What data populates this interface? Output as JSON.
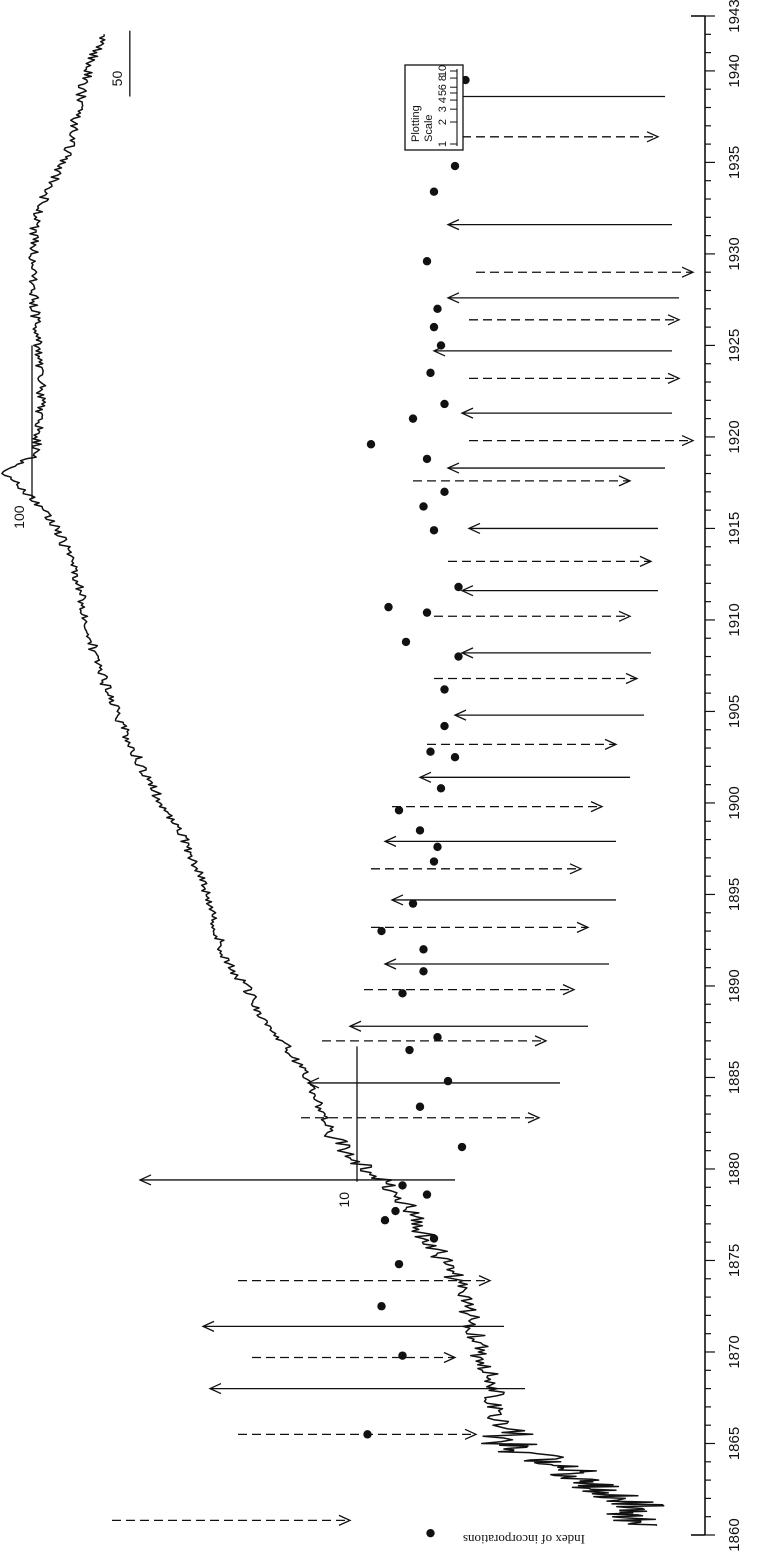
{
  "chart_data": {
    "type": "line",
    "ylabel": "Index of incorporations",
    "x_range": [
      1860,
      1943
    ],
    "x_ticks": [
      "1860",
      "1865",
      "1870",
      "1875",
      "1880",
      "1885",
      "1890",
      "1895",
      "1900",
      "1905",
      "1910",
      "1915",
      "1920",
      "1925",
      "1930",
      "1935",
      "1940",
      "1943"
    ],
    "y_scale": "log",
    "reference_levels": [
      {
        "label": "10",
        "value": 10
      },
      {
        "label": "100",
        "value": 100
      },
      {
        "label": "50",
        "value": 50
      }
    ],
    "series": [
      {
        "x": [
          1860.5,
          1861,
          1861.5,
          1862,
          1862.5,
          1863,
          1863.5,
          1864,
          1864.5,
          1865,
          1866,
          1867,
          1868,
          1869,
          1870,
          1871,
          1872,
          1873,
          1874,
          1875,
          1876,
          1877,
          1878,
          1879,
          1880,
          1881,
          1882,
          1883,
          1884,
          1885,
          1886,
          1887,
          1888,
          1889,
          1890,
          1891,
          1892,
          1893,
          1894,
          1895,
          1896,
          1897,
          1898,
          1899,
          1900,
          1901,
          1902,
          1903,
          1904,
          1905,
          1906,
          1907,
          1908,
          1909,
          1910,
          1911,
          1912,
          1913,
          1914,
          1915,
          1916,
          1917,
          1918,
          1919,
          1920,
          1921,
          1922,
          1923,
          1924,
          1925,
          1926,
          1927,
          1928,
          1929,
          1930,
          1931,
          1932,
          1933,
          1934,
          1935,
          1936,
          1937,
          1938,
          1939,
          1940,
          1941,
          1942
        ],
        "values": [
          1.2,
          1.5,
          1.3,
          1.6,
          1.8,
          2.0,
          2.2,
          2.6,
          3.0,
          3.4,
          3.6,
          3.8,
          3.7,
          3.9,
          4.2,
          4.3,
          4.5,
          4.8,
          5.0,
          5.4,
          6.0,
          6.5,
          7.0,
          7.8,
          9.2,
          11.0,
          12.0,
          12.8,
          13.5,
          14.2,
          15.5,
          17.0,
          19.0,
          20.5,
          22.0,
          24.5,
          26.0,
          27.0,
          28.0,
          29.0,
          30.0,
          32.0,
          34.0,
          37.0,
          40.0,
          43.0,
          46.0,
          49.0,
          52.0,
          55.0,
          58.0,
          61.0,
          64.0,
          66.0,
          68.0,
          70.0,
          72.0,
          75.0,
          79.0,
          84.0,
          92.0,
          104.0,
          122.0,
          98.0,
          96.0,
          95.0,
          94.0,
          93.0,
          95.0,
          96.0,
          97.0,
          98.0,
          99.0,
          98.0,
          99.0,
          99.0,
          97.0,
          92.0,
          86.0,
          80.0,
          76.0,
          74.0,
          72.0,
          70.0,
          67.0,
          64.0,
          60.0
        ]
      }
    ],
    "dot_markers": {
      "x": [
        1860.1,
        1865.5,
        1869.8,
        1872.5,
        1874.8,
        1876.2,
        1877.2,
        1877.7,
        1878.6,
        1879.1,
        1881.2,
        1883.4,
        1884.8,
        1886.5,
        1887.2,
        1889.6,
        1890.8,
        1892.0,
        1893.0,
        1894.5,
        1896.8,
        1897.6,
        1898.5,
        1899.6,
        1900.8,
        1902.5,
        1902.8,
        1904.2,
        1906.2,
        1908.0,
        1908.8,
        1910.4,
        1910.7,
        1911.8,
        1914.9,
        1916.2,
        1917.0,
        1918.8,
        1919.6,
        1921.0,
        1921.8,
        1923.5,
        1925.0,
        1926.0,
        1927.0,
        1929.6,
        1933.4,
        1934.8,
        1938.2,
        1939.5
      ],
      "y_above_curve": [
        0.13,
        0.31,
        0.21,
        0.27,
        0.22,
        0.12,
        0.26,
        0.23,
        0.14,
        0.21,
        0.04,
        0.16,
        0.08,
        0.19,
        0.11,
        0.21,
        0.15,
        0.15,
        0.27,
        0.18,
        0.12,
        0.11,
        0.16,
        0.22,
        0.1,
        0.06,
        0.13,
        0.09,
        0.09,
        0.05,
        0.2,
        0.14,
        0.25,
        0.05,
        0.12,
        0.15,
        0.09,
        0.14,
        0.3,
        0.18,
        0.09,
        0.13,
        0.1,
        0.12,
        0.11,
        0.14,
        0.12,
        0.06,
        0.05,
        0.03
      ]
    },
    "arrows_solid": [
      {
        "x": 1868.0,
        "from": 0.25,
        "to": 0.7
      },
      {
        "x": 1871.4,
        "from": 0.28,
        "to": 0.71
      },
      {
        "x": 1879.4,
        "from": 0.35,
        "to": 0.8
      },
      {
        "x": 1884.7,
        "from": 0.2,
        "to": 0.56
      },
      {
        "x": 1887.8,
        "from": 0.16,
        "to": 0.5
      },
      {
        "x": 1891.2,
        "from": 0.13,
        "to": 0.45
      },
      {
        "x": 1894.7,
        "from": 0.12,
        "to": 0.44
      },
      {
        "x": 1897.9,
        "from": 0.12,
        "to": 0.45
      },
      {
        "x": 1901.4,
        "from": 0.1,
        "to": 0.4
      },
      {
        "x": 1904.8,
        "from": 0.08,
        "to": 0.35
      },
      {
        "x": 1908.2,
        "from": 0.07,
        "to": 0.34
      },
      {
        "x": 1911.6,
        "from": 0.06,
        "to": 0.34
      },
      {
        "x": 1915.0,
        "from": 0.06,
        "to": 0.33
      },
      {
        "x": 1918.3,
        "from": 0.05,
        "to": 0.36
      },
      {
        "x": 1921.3,
        "from": 0.04,
        "to": 0.34
      },
      {
        "x": 1924.7,
        "from": 0.04,
        "to": 0.38
      },
      {
        "x": 1927.6,
        "from": 0.03,
        "to": 0.36
      },
      {
        "x": 1931.6,
        "from": 0.04,
        "to": 0.36
      },
      {
        "x": 1938.6,
        "from": 0.05,
        "to": 0.39
      }
    ],
    "arrows_dashed": [
      {
        "x": 1860.8,
        "from": 0.84,
        "to": 0.5
      },
      {
        "x": 1865.5,
        "from": 0.66,
        "to": 0.32
      },
      {
        "x": 1869.7,
        "from": 0.64,
        "to": 0.35
      },
      {
        "x": 1873.9,
        "from": 0.66,
        "to": 0.3
      },
      {
        "x": 1882.8,
        "from": 0.57,
        "to": 0.23
      },
      {
        "x": 1887.0,
        "from": 0.54,
        "to": 0.22
      },
      {
        "x": 1889.8,
        "from": 0.48,
        "to": 0.18
      },
      {
        "x": 1893.2,
        "from": 0.47,
        "to": 0.16
      },
      {
        "x": 1896.4,
        "from": 0.47,
        "to": 0.17
      },
      {
        "x": 1899.8,
        "from": 0.44,
        "to": 0.14
      },
      {
        "x": 1903.2,
        "from": 0.39,
        "to": 0.12
      },
      {
        "x": 1906.8,
        "from": 0.38,
        "to": 0.09
      },
      {
        "x": 1910.2,
        "from": 0.38,
        "to": 0.1
      },
      {
        "x": 1913.2,
        "from": 0.36,
        "to": 0.07
      },
      {
        "x": 1917.6,
        "from": 0.41,
        "to": 0.1
      },
      {
        "x": 1919.8,
        "from": 0.33,
        "to": 0.01
      },
      {
        "x": 1923.2,
        "from": 0.33,
        "to": 0.03
      },
      {
        "x": 1926.4,
        "from": 0.33,
        "to": 0.03
      },
      {
        "x": 1929.0,
        "from": 0.32,
        "to": 0.01
      },
      {
        "x": 1936.4,
        "from": 0.36,
        "to": 0.06
      }
    ],
    "legend": {
      "title_lines": [
        "Plotting",
        "Scale"
      ],
      "tick_labels": [
        "10",
        "8",
        "6",
        "5",
        "4",
        "3",
        "2",
        "1"
      ],
      "placement": "upper-right"
    },
    "grid": false
  }
}
